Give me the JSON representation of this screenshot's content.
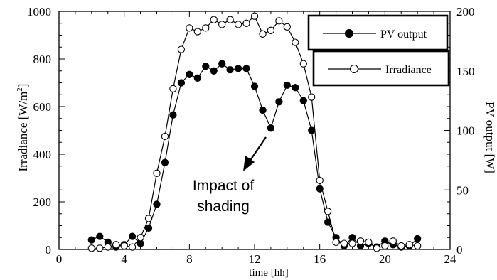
{
  "chart_data": {
    "type": "line",
    "xlabel": "time [hh]",
    "ylabel_left": "Irradiance [W/m",
    "ylabel_left_sup": "2",
    "ylabel_left_end": "]",
    "ylabel_right": "PV output [W]",
    "xlim": [
      0,
      24
    ],
    "ylim_left": [
      0,
      1000
    ],
    "ylim_right": [
      0,
      200
    ],
    "x_ticks": [
      0,
      4,
      8,
      12,
      16,
      20,
      24
    ],
    "y_left_ticks": [
      0,
      200,
      400,
      600,
      800,
      1000
    ],
    "y_right_ticks": [
      0,
      50,
      100,
      150,
      200
    ],
    "grid": false,
    "legend": [
      {
        "label": "PV output",
        "marker": "filled-circle"
      },
      {
        "label": "Irradiance",
        "marker": "open-circle"
      }
    ],
    "annotation": {
      "line1": "Impact of",
      "line2": "shading"
    },
    "series": [
      {
        "name": "PV output",
        "axis": "right",
        "marker": "filled",
        "x": [
          2,
          2.5,
          3,
          3.5,
          4,
          4.5,
          5,
          5.5,
          6,
          6.5,
          7,
          7.5,
          8,
          8.5,
          9,
          9.5,
          10,
          10.5,
          11,
          11.5,
          12,
          12.5,
          13,
          13.5,
          14,
          14.5,
          15,
          15.5,
          16,
          16.5,
          17,
          17.5,
          18,
          18.5,
          19,
          19.5,
          20,
          20.5,
          21,
          21.5,
          22
        ],
        "values": [
          8,
          11,
          6,
          2,
          4,
          11,
          5,
          18,
          38,
          73,
          113,
          140,
          147,
          144,
          154,
          150,
          156,
          151,
          152,
          152,
          137,
          117,
          102,
          124,
          138,
          136,
          125,
          100,
          51,
          23,
          10,
          3,
          10,
          3,
          5,
          2,
          7,
          4,
          2,
          3,
          9
        ]
      },
      {
        "name": "Irradiance",
        "axis": "left",
        "marker": "open",
        "x": [
          2,
          2.5,
          3,
          3.5,
          4,
          4.5,
          5,
          5.5,
          6,
          6.5,
          7,
          7.5,
          8,
          8.5,
          9,
          9.5,
          10,
          10.5,
          11,
          11.5,
          12,
          12.5,
          13,
          13.5,
          14,
          14.5,
          15,
          15.5,
          16,
          16.5,
          17,
          17.5,
          18,
          18.5,
          19,
          19.5,
          20,
          20.5,
          21,
          21.5,
          22
        ],
        "values": [
          5,
          5,
          10,
          20,
          15,
          10,
          50,
          130,
          320,
          475,
          675,
          840,
          930,
          915,
          930,
          965,
          945,
          965,
          945,
          950,
          980,
          905,
          920,
          960,
          935,
          870,
          780,
          640,
          290,
          160,
          30,
          25,
          25,
          35,
          30,
          5,
          15,
          35,
          15,
          20,
          15
        ]
      }
    ]
  }
}
